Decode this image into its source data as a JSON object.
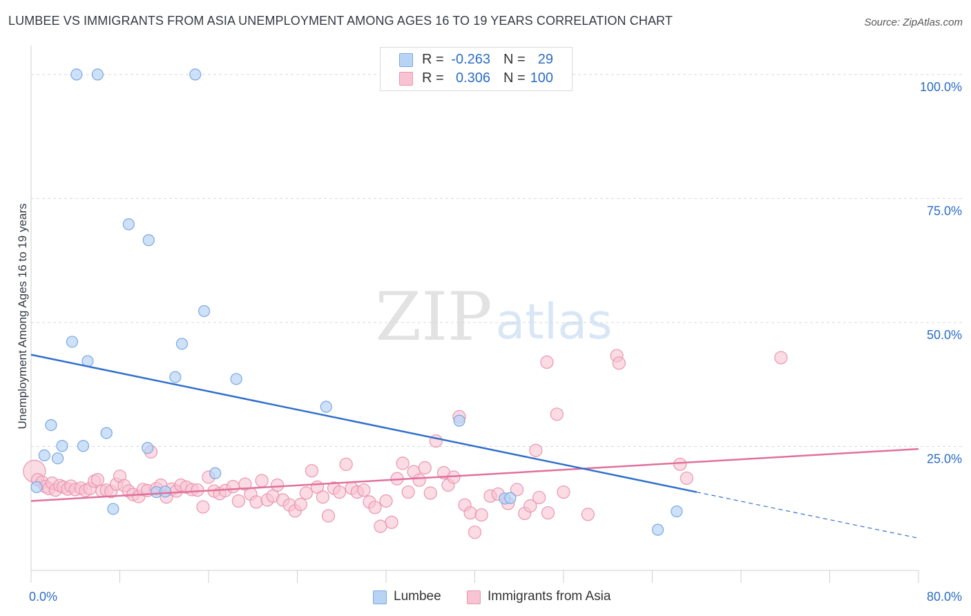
{
  "title": "LUMBEE VS IMMIGRANTS FROM ASIA UNEMPLOYMENT AMONG AGES 16 TO 19 YEARS CORRELATION CHART",
  "source": "Source: ZipAtlas.com",
  "watermark": {
    "zip": "ZIP",
    "atlas": "atlas"
  },
  "legend_top": {
    "rows": [
      {
        "r_label": "R =",
        "r_value": "-0.263",
        "n_label": "N =",
        "n_value": "29"
      },
      {
        "r_label": "R =",
        "r_value": "0.306",
        "n_label": "N =",
        "n_value": "100"
      }
    ]
  },
  "legend_bottom": {
    "items": [
      "Lumbee",
      "Immigrants from Asia"
    ]
  },
  "colors": {
    "lumbee_fill": "#b8d4f5",
    "lumbee_stroke": "#7aa7e0",
    "lumbee_line": "#2f6fcc",
    "asia_fill": "#f8c3d2",
    "asia_stroke": "#e995b0",
    "asia_line": "#e0709a",
    "tick_label": "#2b6cc4",
    "grid": "#d8d8d8"
  },
  "chart_data": {
    "type": "scatter",
    "title": "LUMBEE VS IMMIGRANTS FROM ASIA UNEMPLOYMENT AMONG AGES 16 TO 19 YEARS CORRELATION CHART",
    "xlabel": "",
    "ylabel": "Unemployment Among Ages 16 to 19 years",
    "xlim": [
      0,
      80
    ],
    "ylim": [
      0,
      105
    ],
    "x_tick_labels": [
      "0.0%",
      "80.0%"
    ],
    "y_ticks": [
      25,
      50,
      75,
      100
    ],
    "y_tick_labels": [
      "25.0%",
      "50.0%",
      "75.0%",
      "100.0%"
    ],
    "grid": true,
    "legend_placement": "top-center",
    "series": [
      {
        "name": "Lumbee",
        "r": -0.263,
        "n": 29,
        "trend": {
          "x": [
            0,
            60
          ],
          "y": [
            43.5,
            15.8
          ]
        },
        "trend_dashed": {
          "x": [
            60,
            80
          ],
          "y": [
            15.8,
            6.5
          ]
        },
        "points": [
          [
            0.5,
            16.8
          ],
          [
            1.2,
            23.2
          ],
          [
            1.8,
            29.3
          ],
          [
            2.4,
            22.6
          ],
          [
            2.8,
            25.1
          ],
          [
            4.1,
            100.0
          ],
          [
            6.0,
            100.0
          ],
          [
            14.8,
            100.0
          ],
          [
            3.7,
            46.1
          ],
          [
            5.1,
            42.2
          ],
          [
            4.7,
            25.1
          ],
          [
            6.8,
            27.7
          ],
          [
            7.4,
            12.4
          ],
          [
            8.8,
            69.8
          ],
          [
            10.6,
            66.6
          ],
          [
            10.5,
            24.7
          ],
          [
            11.3,
            15.8
          ],
          [
            12.1,
            15.9
          ],
          [
            13.0,
            39.0
          ],
          [
            13.6,
            45.7
          ],
          [
            15.6,
            52.3
          ],
          [
            16.6,
            19.6
          ],
          [
            18.5,
            38.6
          ],
          [
            26.6,
            33.0
          ],
          [
            38.6,
            30.2
          ],
          [
            42.7,
            14.5
          ],
          [
            43.2,
            14.6
          ],
          [
            56.5,
            8.2
          ],
          [
            58.2,
            11.9
          ]
        ]
      },
      {
        "name": "Immigrants from Asia",
        "r": 0.306,
        "n": 100,
        "trend": {
          "x": [
            0,
            80
          ],
          "y": [
            14.0,
            24.5
          ]
        },
        "points": [
          [
            0.3,
            20.0
          ],
          [
            0.6,
            18.3
          ],
          [
            1.0,
            17.8
          ],
          [
            1.3,
            16.9
          ],
          [
            1.6,
            16.5
          ],
          [
            1.9,
            17.6
          ],
          [
            2.2,
            16.2
          ],
          [
            2.6,
            17.1
          ],
          [
            2.9,
            16.8
          ],
          [
            3.3,
            16.4
          ],
          [
            3.6,
            17.0
          ],
          [
            4.0,
            16.3
          ],
          [
            4.5,
            16.6
          ],
          [
            4.9,
            16.1
          ],
          [
            5.3,
            16.5
          ],
          [
            5.7,
            18.0
          ],
          [
            6.0,
            18.3
          ],
          [
            6.4,
            16.0
          ],
          [
            6.8,
            16.2
          ],
          [
            7.2,
            15.9
          ],
          [
            7.7,
            17.4
          ],
          [
            8.0,
            19.0
          ],
          [
            8.4,
            17.1
          ],
          [
            8.8,
            16.0
          ],
          [
            9.2,
            15.3
          ],
          [
            9.7,
            14.9
          ],
          [
            10.1,
            16.3
          ],
          [
            10.5,
            16.1
          ],
          [
            10.8,
            23.9
          ],
          [
            11.3,
            16.5
          ],
          [
            11.7,
            17.2
          ],
          [
            12.2,
            14.8
          ],
          [
            12.7,
            16.4
          ],
          [
            13.1,
            16.0
          ],
          [
            13.5,
            17.2
          ],
          [
            14.0,
            16.8
          ],
          [
            14.5,
            16.3
          ],
          [
            15.0,
            16.2
          ],
          [
            15.5,
            12.8
          ],
          [
            16.0,
            18.8
          ],
          [
            16.5,
            16.0
          ],
          [
            17.0,
            15.5
          ],
          [
            17.5,
            16.1
          ],
          [
            18.2,
            16.9
          ],
          [
            18.7,
            14.0
          ],
          [
            19.3,
            17.4
          ],
          [
            19.8,
            15.4
          ],
          [
            20.3,
            13.8
          ],
          [
            20.8,
            18.1
          ],
          [
            21.3,
            14.2
          ],
          [
            21.8,
            15.0
          ],
          [
            22.2,
            17.2
          ],
          [
            22.7,
            14.2
          ],
          [
            23.3,
            13.2
          ],
          [
            23.8,
            12.0
          ],
          [
            24.3,
            13.3
          ],
          [
            24.8,
            15.6
          ],
          [
            25.3,
            20.1
          ],
          [
            25.8,
            16.8
          ],
          [
            26.3,
            14.8
          ],
          [
            26.8,
            11.0
          ],
          [
            27.3,
            16.6
          ],
          [
            27.8,
            15.8
          ],
          [
            28.4,
            21.4
          ],
          [
            28.9,
            16.6
          ],
          [
            29.4,
            15.8
          ],
          [
            30.0,
            16.2
          ],
          [
            30.5,
            13.8
          ],
          [
            31.0,
            12.7
          ],
          [
            31.5,
            8.9
          ],
          [
            32.0,
            14.0
          ],
          [
            32.5,
            9.7
          ],
          [
            33.0,
            18.5
          ],
          [
            33.5,
            21.6
          ],
          [
            34.0,
            15.8
          ],
          [
            34.5,
            19.9
          ],
          [
            35.0,
            18.2
          ],
          [
            35.5,
            20.7
          ],
          [
            36.0,
            15.6
          ],
          [
            36.5,
            26.1
          ],
          [
            37.2,
            19.7
          ],
          [
            37.6,
            17.2
          ],
          [
            38.1,
            18.8
          ],
          [
            38.6,
            31.0
          ],
          [
            39.1,
            13.2
          ],
          [
            39.6,
            11.6
          ],
          [
            40.0,
            7.7
          ],
          [
            40.6,
            11.2
          ],
          [
            41.4,
            15.0
          ],
          [
            42.1,
            15.4
          ],
          [
            43.0,
            13.5
          ],
          [
            43.8,
            16.3
          ],
          [
            44.5,
            11.5
          ],
          [
            45.0,
            13.0
          ],
          [
            45.5,
            24.2
          ],
          [
            45.8,
            14.7
          ],
          [
            46.6,
            11.6
          ],
          [
            47.4,
            31.5
          ],
          [
            48.0,
            15.8
          ],
          [
            50.2,
            11.3
          ]
        ],
        "extra_points": [
          [
            46.5,
            42.0
          ],
          [
            52.8,
            43.3
          ],
          [
            53.0,
            41.8
          ],
          [
            67.6,
            42.9
          ],
          [
            59.1,
            18.6
          ],
          [
            58.5,
            21.4
          ]
        ]
      }
    ]
  }
}
